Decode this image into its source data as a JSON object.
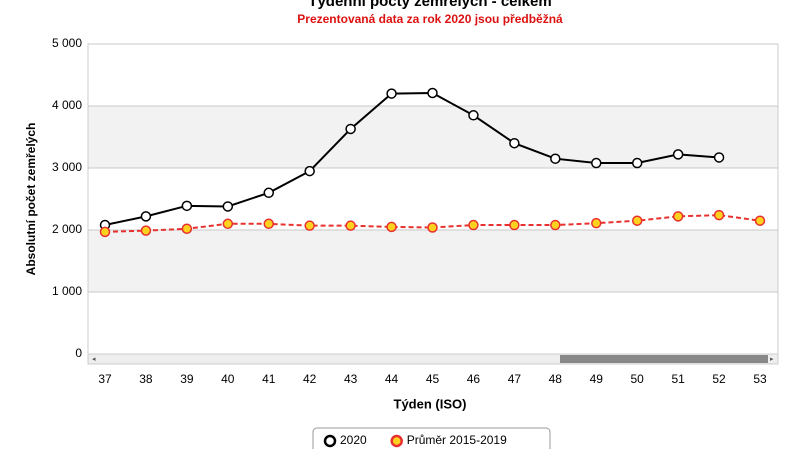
{
  "chart_data": {
    "type": "line",
    "title": "Týdenní počty zemřelých - celkem",
    "subtitle": "Prezentovaná data za rok 2020 jsou předběžná",
    "x_label": "Týden (ISO)",
    "y_label": "Absolutní počet zemřelých",
    "categories": [
      "37",
      "38",
      "39",
      "40",
      "41",
      "42",
      "43",
      "44",
      "45",
      "46",
      "47",
      "48",
      "49",
      "50",
      "51",
      "52",
      "53"
    ],
    "series": [
      {
        "name": "2020",
        "color": "#000000",
        "dashed": false,
        "values": [
          2080,
          2220,
          2390,
          2380,
          2600,
          2950,
          3630,
          4200,
          4210,
          3850,
          3400,
          3150,
          3080,
          3080,
          3220,
          3170,
          null
        ]
      },
      {
        "name": "Průměr 2015-2019",
        "color": "#e8312f",
        "dashed": true,
        "values": [
          1970,
          1990,
          2020,
          2100,
          2100,
          2070,
          2070,
          2050,
          2040,
          2080,
          2080,
          2080,
          2110,
          2150,
          2220,
          2240,
          2150
        ]
      }
    ],
    "ylim": [
      0,
      5000
    ],
    "yticks": [
      0,
      {
        "value": 1000,
        "label": "1 000"
      },
      {
        "value": 2000,
        "label": "2 000"
      },
      {
        "value": 3000,
        "label": "3 000"
      },
      {
        "value": 4000,
        "label": "4 000"
      },
      {
        "value": 5000,
        "label": "5 000"
      }
    ],
    "grid": true
  }
}
